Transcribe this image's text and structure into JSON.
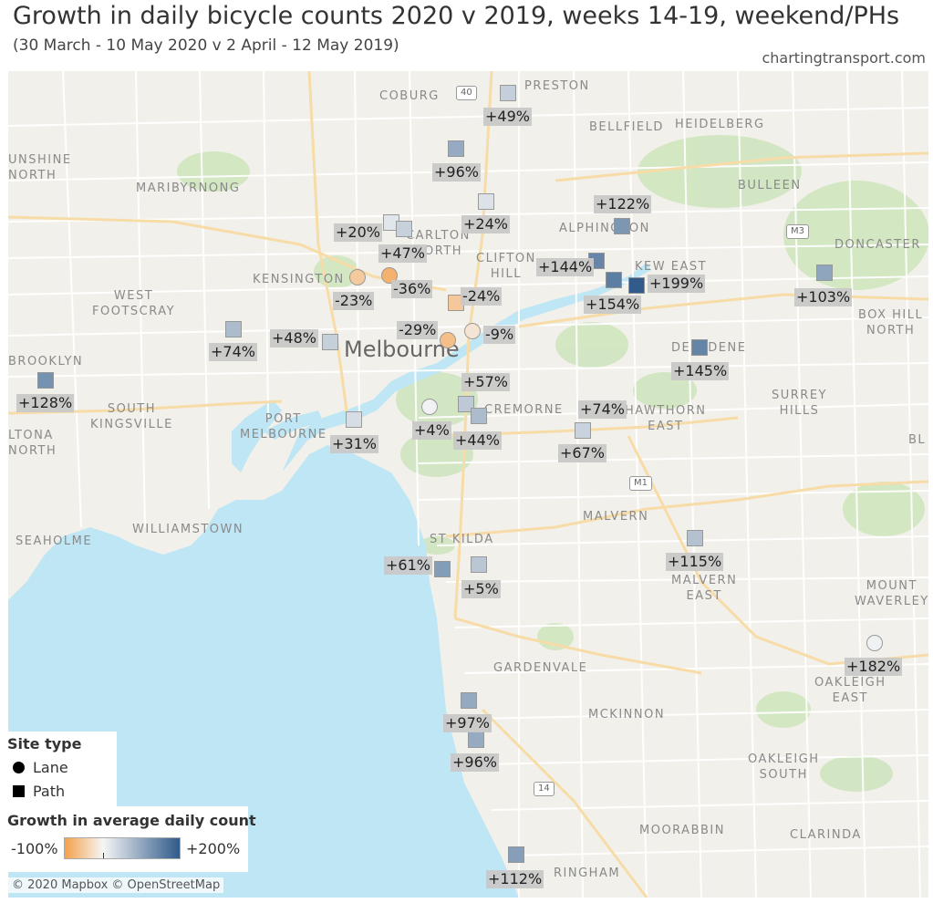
{
  "title": "Growth in daily bicycle counts 2020 v 2019, weeks 14-19, weekend/PHs",
  "subtitle": "(30 March - 10 May 2020 v 2 April - 12 May 2019)",
  "credit": "chartingtransport.com",
  "attribution": "© 2020 Mapbox © OpenStreetMap",
  "colors": {
    "water": "#bfe6f4",
    "land": "#f2f0ea",
    "park": "#cfe5bf",
    "road": "#ffffff",
    "major_road": "#f7dca8",
    "negative": "#f4a04a",
    "neutral": "#f5f5f5",
    "positive": "#2f5a8a"
  },
  "places": [
    {
      "id": "coburg",
      "label": "COBURG"
    },
    {
      "id": "preston",
      "label": "PRESTON"
    },
    {
      "id": "bellfield",
      "label": "BELLFIELD"
    },
    {
      "id": "heidelberg",
      "label": "HEIDELBERG"
    },
    {
      "id": "sunshine-north",
      "label": "UNSHINE\nNORTH"
    },
    {
      "id": "maribyrnong",
      "label": "MARIBYRNONG"
    },
    {
      "id": "bulleen",
      "label": "BULLEEN"
    },
    {
      "id": "carlton-north",
      "label": "CARLTON\nNORTH"
    },
    {
      "id": "alphington",
      "label": "ALPHINGTON"
    },
    {
      "id": "doncaster",
      "label": "DONCASTER"
    },
    {
      "id": "clifton-hill",
      "label": "CLIFTON\nHILL"
    },
    {
      "id": "kensington",
      "label": "KENSINGTON"
    },
    {
      "id": "kew-east",
      "label": "KEW EAST"
    },
    {
      "id": "west-footscray",
      "label": "WEST\nFOOTSCRAY"
    },
    {
      "id": "box-hill-north",
      "label": "BOX HILL\nNORTH"
    },
    {
      "id": "deepdene",
      "label": "DEEPDENE"
    },
    {
      "id": "brooklyn",
      "label": "BROOKLYN"
    },
    {
      "id": "south-kingsville",
      "label": "SOUTH\nKINGSVILLE"
    },
    {
      "id": "surrey-hills",
      "label": "SURREY\nHILLS"
    },
    {
      "id": "port-melbourne",
      "label": "PORT\nMELBOURNE"
    },
    {
      "id": "cremorne",
      "label": "CREMORNE"
    },
    {
      "id": "hawthorn-east",
      "label": "HAWTHORN\nEAST"
    },
    {
      "id": "altona-north",
      "label": "LTONA\nNORTH"
    },
    {
      "id": "bl",
      "label": "BL"
    },
    {
      "id": "williamstown",
      "label": "WILLIAMSTOWN"
    },
    {
      "id": "seaholme",
      "label": "SEAHOLME"
    },
    {
      "id": "malvern",
      "label": "MALVERN"
    },
    {
      "id": "st-kilda",
      "label": "ST KILDA"
    },
    {
      "id": "malvern-east",
      "label": "MALVERN\nEAST"
    },
    {
      "id": "mount-waverley",
      "label": "MOUNT\nWAVERLEY"
    },
    {
      "id": "gardenvale",
      "label": "GARDENVALE"
    },
    {
      "id": "oakleigh-east",
      "label": "OAKLEIGH\nEAST"
    },
    {
      "id": "mckinnon",
      "label": "MCKINNON"
    },
    {
      "id": "oakleigh-south",
      "label": "OAKLEIGH\nSOUTH"
    },
    {
      "id": "moorabbin",
      "label": "MOORABBIN"
    },
    {
      "id": "clarinda",
      "label": "CLARINDA"
    },
    {
      "id": "cheltenham",
      "label": "RINGHAM"
    }
  ],
  "city_label": "Melbourne",
  "road_shields": [
    "40",
    "M3",
    "M1",
    "14"
  ],
  "sites": [
    {
      "type": "path",
      "value": 49,
      "label": "+49%"
    },
    {
      "type": "path",
      "value": 96,
      "label": "+96%"
    },
    {
      "type": "path",
      "value": 24,
      "label": "+24%"
    },
    {
      "type": "path",
      "value": 122,
      "label": "+122%"
    },
    {
      "type": "path",
      "value": 20,
      "label": "+20%"
    },
    {
      "type": "path",
      "value": 47,
      "label": "+47%"
    },
    {
      "type": "path",
      "value": 144,
      "label": "+144%"
    },
    {
      "type": "path",
      "value": 154,
      "label": "+154%"
    },
    {
      "type": "path",
      "value": 199,
      "label": "+199%"
    },
    {
      "type": "path",
      "value": 103,
      "label": "+103%"
    },
    {
      "type": "lane",
      "value": -23,
      "label": "-23%"
    },
    {
      "type": "lane",
      "value": -36,
      "label": "-36%"
    },
    {
      "type": "path",
      "value": -24,
      "label": "-24%"
    },
    {
      "type": "lane",
      "value": -29,
      "label": "-29%"
    },
    {
      "type": "lane",
      "value": -9,
      "label": "-9%"
    },
    {
      "type": "path",
      "value": 74,
      "label": "+74%"
    },
    {
      "type": "path",
      "value": 48,
      "label": "+48%"
    },
    {
      "type": "path",
      "value": 145,
      "label": "+145%"
    },
    {
      "type": "path",
      "value": 128,
      "label": "+128%"
    },
    {
      "type": "path",
      "value": 57,
      "label": "+57%"
    },
    {
      "type": "path",
      "value": 74,
      "label": "+74%"
    },
    {
      "type": "lane",
      "value": 4,
      "label": "+4%"
    },
    {
      "type": "path",
      "value": 44,
      "label": "+44%"
    },
    {
      "type": "path",
      "value": 31,
      "label": "+31%"
    },
    {
      "type": "path",
      "value": 67,
      "label": "+67%"
    },
    {
      "type": "path",
      "value": 115,
      "label": "+115%"
    },
    {
      "type": "path",
      "value": 61,
      "label": "+61%"
    },
    {
      "type": "lane",
      "value": 5,
      "label": "+5%"
    },
    {
      "type": "path",
      "value": 182,
      "label": "+182%"
    },
    {
      "type": "path",
      "value": 97,
      "label": "+97%"
    },
    {
      "type": "path",
      "value": 96,
      "label": "+96%"
    },
    {
      "type": "path",
      "value": 112,
      "label": "+112%"
    }
  ],
  "legend": {
    "site_type_title": "Site type",
    "lane_label": "Lane",
    "path_label": "Path",
    "growth_title": "Growth in average daily count",
    "min_label": "-100%",
    "max_label": "+200%",
    "min_value": -100,
    "max_value": 200
  }
}
